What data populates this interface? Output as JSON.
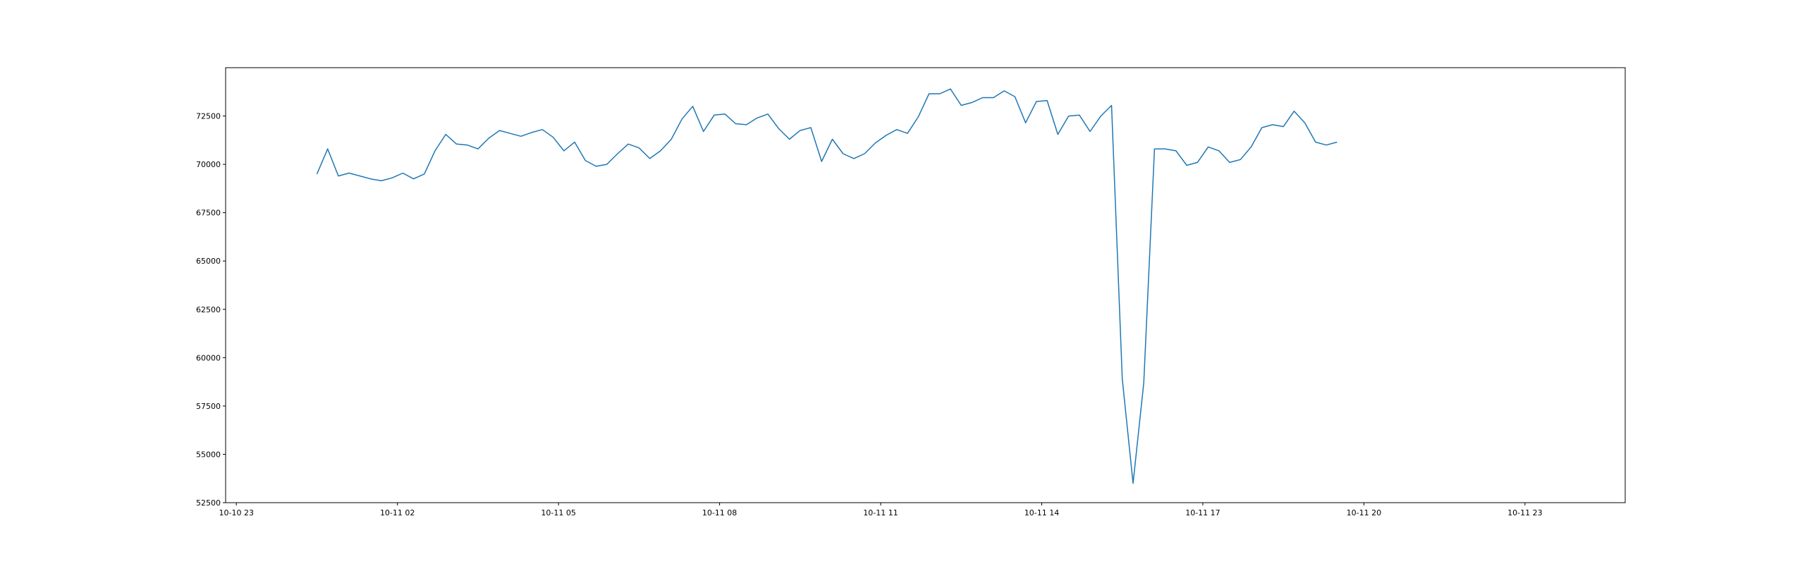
{
  "chart_data": {
    "type": "line",
    "title": "",
    "xlabel": "",
    "ylabel": "",
    "grid": false,
    "line_color": "#1f77b4",
    "x_start": "10-11 00:30",
    "x_step_minutes": 12,
    "xlim": [
      "10-10 22:48",
      "10-12 00:52"
    ],
    "ylim": [
      52500,
      75000
    ],
    "x_ticks": [
      {
        "pos": "10-10 23:00",
        "label": "10-10 23"
      },
      {
        "pos": "10-11 02:00",
        "label": "10-11 02"
      },
      {
        "pos": "10-11 05:00",
        "label": "10-11 05"
      },
      {
        "pos": "10-11 08:00",
        "label": "10-11 08"
      },
      {
        "pos": "10-11 11:00",
        "label": "10-11 11"
      },
      {
        "pos": "10-11 14:00",
        "label": "10-11 14"
      },
      {
        "pos": "10-11 17:00",
        "label": "10-11 17"
      },
      {
        "pos": "10-11 20:00",
        "label": "10-11 20"
      },
      {
        "pos": "10-11 23:00",
        "label": "10-11 23"
      }
    ],
    "y_ticks": [
      {
        "value": 52500,
        "label": "52500"
      },
      {
        "value": 55000,
        "label": "55000"
      },
      {
        "value": 57500,
        "label": "57500"
      },
      {
        "value": 60000,
        "label": "60000"
      },
      {
        "value": 62500,
        "label": "62500"
      },
      {
        "value": 65000,
        "label": "65000"
      },
      {
        "value": 67500,
        "label": "67500"
      },
      {
        "value": 70000,
        "label": "70000"
      },
      {
        "value": 72500,
        "label": "72500"
      }
    ],
    "series": [
      {
        "values": [
          69500,
          70800,
          69400,
          69550,
          69400,
          69250,
          69150,
          69300,
          69550,
          69250,
          69500,
          70700,
          71550,
          71050,
          71000,
          70800,
          71350,
          71750,
          71600,
          71450,
          71650,
          71800,
          71400,
          70700,
          71150,
          70200,
          69900,
          70000,
          70550,
          71050,
          70850,
          70300,
          70700,
          71300,
          72350,
          73000,
          71700,
          72550,
          72600,
          72100,
          72050,
          72400,
          72600,
          71850,
          71300,
          71750,
          71900,
          70150,
          71300,
          70550,
          70300,
          70550,
          71100,
          71500,
          71800,
          71600,
          72450,
          73650,
          73650,
          73900,
          73050,
          73200,
          73450,
          73450,
          73800,
          73500,
          72150,
          73250,
          73300,
          71550,
          72500,
          72550,
          71700,
          72500,
          73050,
          58900,
          53500,
          58700,
          70800,
          70800,
          70700,
          69950,
          70100,
          70900,
          70700,
          70100,
          70250,
          70900,
          71900,
          72050,
          71950,
          72750,
          72150,
          71150,
          71000,
          71150
        ]
      }
    ]
  }
}
